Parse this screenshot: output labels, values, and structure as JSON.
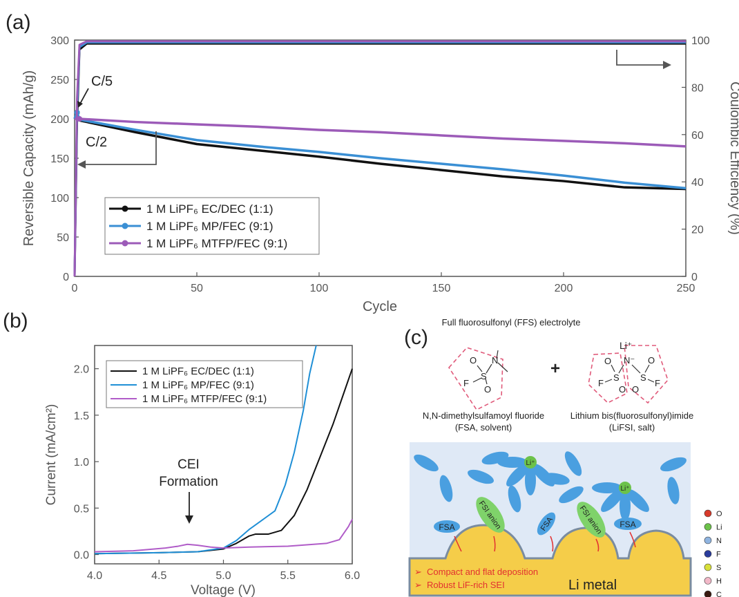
{
  "panel_labels": [
    "(a)",
    "(b)",
    "(c)"
  ],
  "chart_data": [
    {
      "type": "line",
      "panel": "(a)",
      "xlabel": "Cycle",
      "ylabel": "Reversible Capacity (mAh/g)",
      "y2label": "Coulombic Efficiency (%)",
      "xlim": [
        0,
        250
      ],
      "ylim": [
        0,
        300
      ],
      "y2lim": [
        0,
        100
      ],
      "xticks": [
        0,
        50,
        100,
        150,
        200,
        250
      ],
      "yticks": [
        0,
        50,
        100,
        150,
        200,
        250,
        300
      ],
      "y2ticks": [
        0,
        20,
        40,
        60,
        80,
        100
      ],
      "annotations": [
        "C/5",
        "C/2"
      ],
      "legend_position": "bottom-left",
      "series": [
        {
          "name": "1 M LiPF₆ EC/DEC (1:1)",
          "color": "#111111",
          "capacity": {
            "x": [
              0,
              1,
              2,
              25,
              50,
              75,
              100,
              125,
              150,
              175,
              200,
              225,
              250
            ],
            "y": [
              200,
              208,
              198,
              183,
              168,
              160,
              152,
              143,
              135,
              127,
              121,
              113,
              111
            ]
          },
          "efficiency": {
            "x": [
              0,
              1,
              2,
              5,
              250
            ],
            "y": [
              0,
              65,
              96,
              98.5,
              98.5
            ]
          }
        },
        {
          "name": "1 M LiPF₆ MP/FEC (9:1)",
          "color": "#3a8fd4",
          "capacity": {
            "x": [
              0,
              1,
              2,
              25,
              50,
              75,
              100,
              125,
              150,
              175,
              200,
              225,
              250
            ],
            "y": [
              200,
              208,
              199,
              186,
              173,
              165,
              158,
              150,
              143,
              136,
              128,
              119,
              112
            ]
          },
          "efficiency": {
            "x": [
              0,
              1,
              2,
              5,
              250
            ],
            "y": [
              0,
              70,
              97,
              99,
              99
            ]
          }
        },
        {
          "name": "1 M LiPF₆ MTFP/FEC (9:1)",
          "color": "#9c5bb8",
          "capacity": {
            "x": [
              0,
              2,
              25,
              50,
              75,
              100,
              125,
              150,
              175,
              200,
              225,
              250
            ],
            "y": [
              200,
              200,
              196,
              193,
              190,
              186,
              183,
              179,
              175,
              172,
              169,
              165
            ]
          },
          "efficiency": {
            "x": [
              0,
              1,
              2,
              5,
              250
            ],
            "y": [
              0,
              75,
              98,
              99.5,
              99.5
            ]
          }
        }
      ]
    },
    {
      "type": "line",
      "panel": "(b)",
      "xlabel": "Voltage (V)",
      "ylabel": "Current (mA/cm²)",
      "xlim": [
        4.0,
        6.0
      ],
      "ylim": [
        -0.1,
        2.25
      ],
      "xticks": [
        4.0,
        4.5,
        5.0,
        5.5,
        6.0
      ],
      "yticks": [
        0.0,
        0.5,
        1.0,
        1.5,
        2.0
      ],
      "legend_position": "top",
      "annotations": [
        "CEI",
        "Formation"
      ],
      "series": [
        {
          "name": "1 M LiPF₆ EC/DEC (1:1)",
          "color": "#111111",
          "x": [
            4.0,
            4.5,
            4.8,
            5.0,
            5.1,
            5.2,
            5.25,
            5.35,
            5.45,
            5.55,
            5.65,
            5.75,
            5.85,
            5.95,
            6.0
          ],
          "y": [
            0.01,
            0.02,
            0.03,
            0.06,
            0.12,
            0.2,
            0.22,
            0.22,
            0.26,
            0.42,
            0.7,
            1.05,
            1.4,
            1.8,
            2.0
          ]
        },
        {
          "name": "1 M LiPF₆ MP/FEC (9:1)",
          "color": "#1f8fd6",
          "x": [
            4.0,
            4.5,
            4.8,
            5.0,
            5.1,
            5.2,
            5.3,
            5.4,
            5.48,
            5.55,
            5.62,
            5.67,
            5.72
          ],
          "y": [
            0.01,
            0.02,
            0.03,
            0.07,
            0.15,
            0.27,
            0.37,
            0.47,
            0.75,
            1.1,
            1.55,
            1.95,
            2.25
          ]
        },
        {
          "name": "1 M LiPF₆ MTFP/FEC (9:1)",
          "color": "#b05cc8",
          "x": [
            4.0,
            4.3,
            4.55,
            4.65,
            4.72,
            4.8,
            4.9,
            5.0,
            5.2,
            5.5,
            5.8,
            5.9,
            5.97,
            6.0
          ],
          "y": [
            0.03,
            0.04,
            0.07,
            0.09,
            0.11,
            0.1,
            0.08,
            0.07,
            0.08,
            0.09,
            0.12,
            0.16,
            0.3,
            0.38
          ]
        }
      ]
    }
  ],
  "scheme": {
    "title": "Full fluorosulfonyl (FFS) electrolyte",
    "plus": "+",
    "solvent_name": "N,N-dimethylsulfamoyl fluoride",
    "solvent_abbr": "(FSA, solvent)",
    "salt_name": "Lithium bis(fluorosulfonyl)imide",
    "salt_abbr": "(LiFSI, salt)",
    "atom_O": "O",
    "atom_S": "S",
    "atom_N": "N",
    "atom_F": "F",
    "li_plus": "Li⁺",
    "n_minus": "N⁻",
    "li_ion": "Li⁺",
    "fsa_label": "FSA",
    "fsi_label": "FSI anion",
    "bullet_1": "Compact and flat deposition",
    "bullet_2": "Robust LiF-rich SEI",
    "metal_label": "Li metal",
    "legend": [
      {
        "label": "O",
        "color": "#d83a2a"
      },
      {
        "label": "Li",
        "color": "#6cc24a"
      },
      {
        "label": "N",
        "color": "#8fb4e0"
      },
      {
        "label": "F",
        "color": "#2a3c9c"
      },
      {
        "label": "S",
        "color": "#d8e03a"
      },
      {
        "label": "H",
        "color": "#f2b8c8"
      },
      {
        "label": "C",
        "color": "#3a1a10"
      }
    ]
  }
}
